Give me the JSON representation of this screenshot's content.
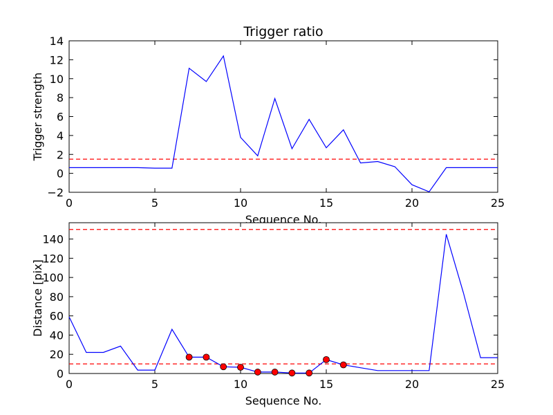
{
  "chart_data": [
    {
      "type": "line",
      "title": "Trigger ratio",
      "xlabel": "Sequence No.",
      "ylabel": "Trigger strength",
      "xlim": [
        0,
        25
      ],
      "ylim": [
        -2,
        14
      ],
      "xticks": [
        0,
        5,
        10,
        15,
        20,
        25
      ],
      "yticks": [
        -2,
        0,
        2,
        4,
        6,
        8,
        10,
        12,
        14
      ],
      "grid": false,
      "series": [
        {
          "color": "#0000ff",
          "x": [
            0,
            1,
            2,
            3,
            4,
            5,
            6,
            7,
            8,
            9,
            10,
            11,
            12,
            13,
            14,
            15,
            16,
            17,
            18,
            19,
            20,
            21,
            22,
            23,
            24,
            25
          ],
          "y": [
            0.6,
            0.6,
            0.6,
            0.6,
            0.6,
            0.55,
            0.55,
            11.1,
            9.7,
            12.4,
            3.8,
            1.85,
            7.9,
            2.6,
            5.7,
            2.7,
            4.6,
            1.1,
            1.25,
            0.7,
            -1.2,
            -1.95,
            0.6,
            0.6,
            0.6,
            0.6
          ]
        }
      ],
      "hlines": [
        {
          "y": 1.5,
          "color": "#ff0000",
          "style": "dashed"
        }
      ]
    },
    {
      "type": "line",
      "title": "",
      "xlabel": "Sequence No.",
      "ylabel": "Distance [pix]",
      "xlim": [
        0,
        25
      ],
      "ylim": [
        0,
        157
      ],
      "xticks": [
        0,
        5,
        10,
        15,
        20,
        25
      ],
      "yticks": [
        0,
        20,
        40,
        60,
        80,
        100,
        120,
        140
      ],
      "grid": false,
      "series": [
        {
          "color": "#0000ff",
          "x": [
            0,
            1,
            2,
            3,
            4,
            5,
            6,
            7,
            8,
            9,
            10,
            11,
            12,
            13,
            14,
            15,
            16,
            17,
            18,
            19,
            20,
            21,
            22,
            23,
            24,
            25
          ],
          "y": [
            59,
            22,
            22,
            28.5,
            3.5,
            3.5,
            46,
            17,
            17,
            7,
            6.5,
            1.5,
            1.5,
            0.5,
            0.5,
            14.5,
            9,
            6,
            3,
            3,
            3,
            3,
            145,
            84,
            16.5,
            16.5
          ]
        }
      ],
      "markers": {
        "color": "#ff0000",
        "x": [
          7,
          8,
          9,
          10,
          11,
          12,
          13,
          14,
          15,
          16
        ],
        "y": [
          17,
          17,
          7,
          6.5,
          1.5,
          1.5,
          0.5,
          0.5,
          14.5,
          9
        ]
      },
      "hlines": [
        {
          "y": 150,
          "color": "#ff0000",
          "style": "dashed"
        },
        {
          "y": 10,
          "color": "#ff0000",
          "style": "dashed"
        }
      ]
    }
  ]
}
